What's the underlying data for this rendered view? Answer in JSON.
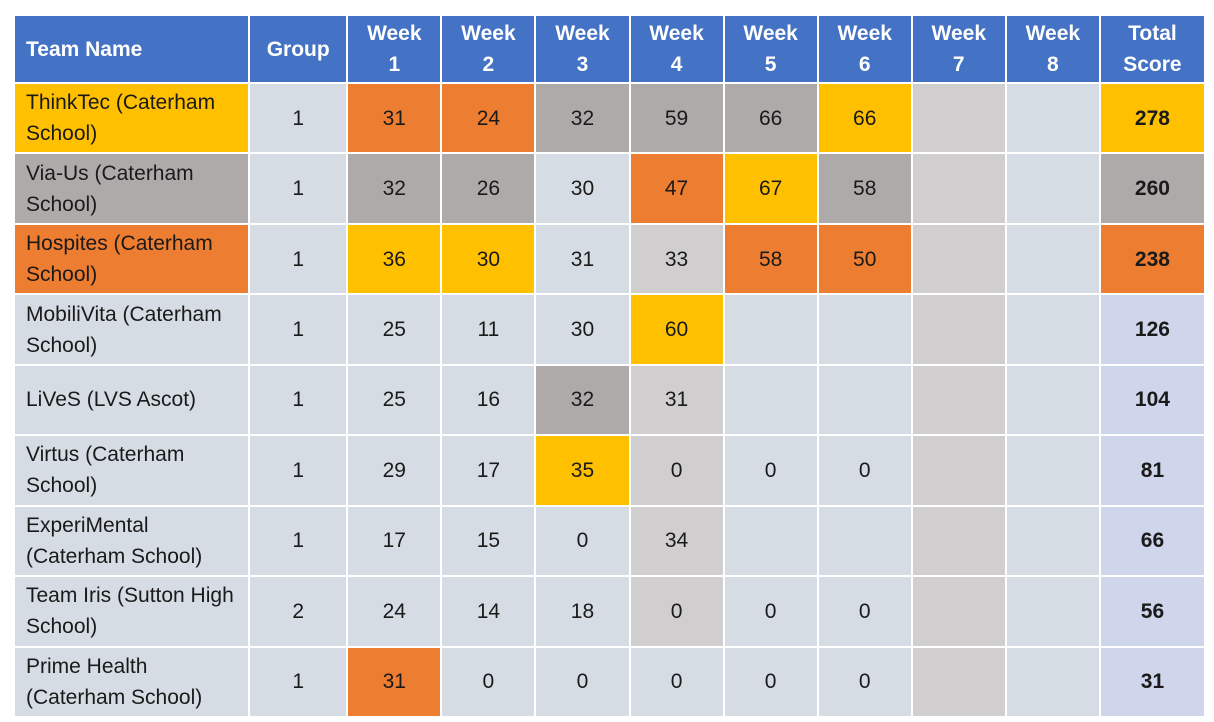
{
  "headers": [
    "Team Name",
    "Group",
    "Week\n1",
    "Week\n2",
    "Week\n3",
    "Week\n4",
    "Week\n5",
    "Week\n6",
    "Week\n7",
    "Week\n8",
    "Total\nScore"
  ],
  "colors": {
    "header": "#4472c4",
    "cell": "#d6dce4",
    "total": "#cfd5ea",
    "orange": "#ed7d31",
    "gold": "#ffc000",
    "gray": "#aeaaaa",
    "light_gray": "#d0cece"
  },
  "rows": [
    {
      "team": "ThinkTec (Caterham School)",
      "group": "1",
      "weeks": [
        "31",
        "24",
        "32",
        "59",
        "66",
        "66",
        "",
        ""
      ],
      "week_fills": [
        "orange",
        "orange",
        "gray",
        "gray",
        "gray",
        "gold",
        "lgray",
        ""
      ],
      "total": "278",
      "team_fill": "gold",
      "total_fill": "gold"
    },
    {
      "team": "Via-Us (Caterham School)",
      "group": "1",
      "weeks": [
        "32",
        "26",
        "30",
        "47",
        "67",
        "58",
        "",
        ""
      ],
      "week_fills": [
        "gray",
        "gray",
        "",
        "orange",
        "gold",
        "gray",
        "lgray",
        ""
      ],
      "total": "260",
      "team_fill": "gray",
      "total_fill": "gray"
    },
    {
      "team": "Hospites (Caterham School)",
      "group": "1",
      "weeks": [
        "36",
        "30",
        "31",
        "33",
        "58",
        "50",
        "",
        ""
      ],
      "week_fills": [
        "gold",
        "gold",
        "",
        "lgray",
        "orange",
        "orange",
        "lgray",
        ""
      ],
      "total": "238",
      "team_fill": "orange",
      "total_fill": "orange"
    },
    {
      "team": "MobiliVita (Caterham School)",
      "group": "1",
      "weeks": [
        "25",
        "11",
        "30",
        "60",
        "",
        "",
        "",
        ""
      ],
      "week_fills": [
        "",
        "",
        "",
        "gold",
        "",
        "",
        "lgray",
        ""
      ],
      "total": "126",
      "team_fill": "",
      "total_fill": ""
    },
    {
      "team": "LiVeS (LVS Ascot)",
      "group": "1",
      "weeks": [
        "25",
        "16",
        "32",
        "31",
        "",
        "",
        "",
        ""
      ],
      "week_fills": [
        "",
        "",
        "gray",
        "lgray",
        "",
        "",
        "lgray",
        ""
      ],
      "total": "104",
      "team_fill": "",
      "total_fill": ""
    },
    {
      "team": "Virtus (Caterham School)",
      "group": "1",
      "weeks": [
        "29",
        "17",
        "35",
        "0",
        "0",
        "0",
        "",
        ""
      ],
      "week_fills": [
        "",
        "",
        "gold",
        "lgray",
        "",
        "",
        "lgray",
        ""
      ],
      "total": "81",
      "team_fill": "",
      "total_fill": ""
    },
    {
      "team": "ExperiMental (Caterham School)",
      "group": "1",
      "weeks": [
        "17",
        "15",
        "0",
        "34",
        "",
        "",
        "",
        ""
      ],
      "week_fills": [
        "",
        "",
        "",
        "lgray",
        "",
        "",
        "lgray",
        ""
      ],
      "total": "66",
      "team_fill": "",
      "total_fill": ""
    },
    {
      "team": "Team Iris (Sutton High School)",
      "group": "2",
      "weeks": [
        "24",
        "14",
        "18",
        "0",
        "0",
        "0",
        "",
        ""
      ],
      "week_fills": [
        "",
        "",
        "",
        "lgray",
        "",
        "",
        "lgray",
        ""
      ],
      "total": "56",
      "team_fill": "",
      "total_fill": ""
    },
    {
      "team": "Prime Health (Caterham School)",
      "group": "1",
      "weeks": [
        "31",
        "0",
        "0",
        "0",
        "0",
        "0",
        "",
        ""
      ],
      "week_fills": [
        "orange",
        "",
        "",
        "",
        "",
        "",
        "lgray",
        ""
      ],
      "total": "31",
      "team_fill": "",
      "total_fill": ""
    }
  ]
}
